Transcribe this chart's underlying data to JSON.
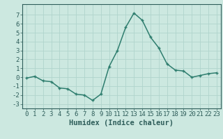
{
  "x": [
    0,
    1,
    2,
    3,
    4,
    5,
    6,
    7,
    8,
    9,
    10,
    11,
    12,
    13,
    14,
    15,
    16,
    17,
    18,
    19,
    20,
    21,
    22,
    23
  ],
  "y": [
    -0.1,
    0.1,
    -0.4,
    -0.5,
    -1.2,
    -1.3,
    -1.9,
    -2.0,
    -2.6,
    -1.9,
    1.2,
    3.0,
    5.6,
    7.2,
    6.4,
    4.5,
    3.3,
    1.5,
    0.8,
    0.7,
    0.0,
    0.2,
    0.4,
    0.5
  ],
  "line_color": "#2e7d6e",
  "marker": "+",
  "bg_color": "#cce8e0",
  "grid_color": "#b0d4cc",
  "xlabel": "Humidex (Indice chaleur)",
  "xlim": [
    -0.5,
    23.5
  ],
  "ylim": [
    -3.5,
    8.2
  ],
  "yticks": [
    -3,
    -2,
    -1,
    0,
    1,
    2,
    3,
    4,
    5,
    6,
    7
  ],
  "xticks": [
    0,
    1,
    2,
    3,
    4,
    5,
    6,
    7,
    8,
    9,
    10,
    11,
    12,
    13,
    14,
    15,
    16,
    17,
    18,
    19,
    20,
    21,
    22,
    23
  ],
  "tick_color": "#2e5d5a",
  "axis_color": "#2e5d5a",
  "font_color": "#2e5d5a",
  "font_size": 6.5,
  "xlabel_fontsize": 7.5,
  "linewidth": 1.1,
  "markersize": 3.5,
  "markeredgewidth": 1.0
}
